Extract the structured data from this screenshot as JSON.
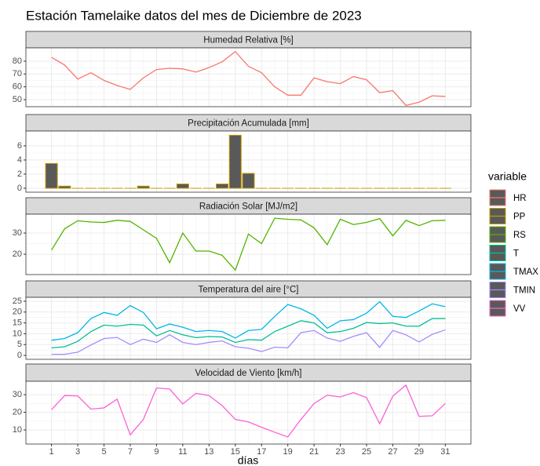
{
  "title": "Estación Tamelaike datos del mes de Diciembre de 2023",
  "x_label": "días",
  "legend_title": "variable",
  "chart_data": [
    {
      "type": "line",
      "title": "Humedad Relativa [%]",
      "x": [
        1,
        2,
        3,
        4,
        5,
        6,
        7,
        8,
        9,
        10,
        11,
        12,
        13,
        14,
        15,
        16,
        17,
        18,
        19,
        20,
        21,
        22,
        23,
        24,
        25,
        26,
        27,
        28,
        29,
        30,
        31
      ],
      "series": [
        {
          "name": "HR",
          "color": "#F8766D",
          "values": [
            83,
            77,
            66,
            71,
            65,
            61,
            58,
            67,
            73.5,
            74.5,
            74,
            71.5,
            75,
            79.5,
            87.5,
            76,
            71,
            60,
            53.5,
            53.5,
            67,
            64,
            62.5,
            68,
            65.5,
            55.5,
            57,
            45.5,
            48,
            53,
            52.5
          ]
        }
      ],
      "xlim": [
        -0.95,
        32.95
      ],
      "xticks": [
        1,
        3,
        5,
        7,
        9,
        11,
        13,
        15,
        17,
        19,
        21,
        23,
        25,
        27,
        29,
        31
      ],
      "ylim": [
        44.5,
        90.4
      ],
      "yticks": [
        50,
        60,
        70,
        80
      ],
      "grid": true
    },
    {
      "type": "bar",
      "title": "Precipitación Acumulada [mm]",
      "x": [
        1,
        2,
        3,
        4,
        5,
        6,
        7,
        8,
        9,
        10,
        11,
        12,
        13,
        14,
        15,
        16,
        17,
        18,
        19,
        20,
        21,
        22,
        23,
        24,
        25,
        26,
        27,
        28,
        29,
        30,
        31
      ],
      "series": [
        {
          "name": "PP",
          "color": "#C49A00",
          "values": [
            3.5,
            0.3,
            0,
            0,
            0,
            0,
            0,
            0.3,
            0,
            0,
            0.6,
            0,
            0,
            0.6,
            7.5,
            2.1,
            0,
            0,
            0,
            0,
            0,
            0,
            0,
            0,
            0,
            0,
            0,
            0,
            0,
            0,
            0
          ]
        }
      ],
      "xlim": [
        -0.95,
        32.95
      ],
      "xticks": [
        1,
        3,
        5,
        7,
        9,
        11,
        13,
        15,
        17,
        19,
        21,
        23,
        25,
        27,
        29,
        31
      ],
      "ylim": [
        -0.56,
        8.1
      ],
      "yticks": [
        0,
        2,
        4,
        6
      ],
      "grid": true
    },
    {
      "type": "line",
      "title": "Radiación Solar [MJ/m2]",
      "x": [
        1,
        2,
        3,
        4,
        5,
        6,
        7,
        8,
        9,
        10,
        11,
        12,
        13,
        14,
        15,
        16,
        17,
        18,
        19,
        20,
        21,
        22,
        23,
        24,
        25,
        26,
        27,
        28,
        29,
        30,
        31
      ],
      "series": [
        {
          "name": "RS",
          "color": "#53B400",
          "values": [
            22,
            32,
            35.8,
            35.2,
            35,
            36,
            35.5,
            31.5,
            27.5,
            16,
            30,
            21.5,
            21.5,
            19.5,
            12.5,
            29.5,
            25,
            37,
            36.5,
            36.2,
            32.5,
            24.5,
            36.5,
            34,
            35,
            36.8,
            28.7,
            36,
            33.5,
            35.8,
            36
          ]
        }
      ],
      "xlim": [
        -0.95,
        32.95
      ],
      "xticks": [
        1,
        3,
        5,
        7,
        9,
        11,
        13,
        15,
        17,
        19,
        21,
        23,
        25,
        27,
        29,
        31
      ],
      "ylim": [
        10.4,
        38.9
      ],
      "yticks": [
        20,
        30
      ],
      "grid": true
    },
    {
      "type": "line",
      "title": "Temperatura del aire [°C]",
      "x": [
        1,
        2,
        3,
        4,
        5,
        6,
        7,
        8,
        9,
        10,
        11,
        12,
        13,
        14,
        15,
        16,
        17,
        18,
        19,
        20,
        21,
        22,
        23,
        24,
        25,
        26,
        27,
        28,
        29,
        30,
        31
      ],
      "series": [
        {
          "name": "T",
          "color": "#00C094",
          "values": [
            3.5,
            4,
            6.5,
            11,
            14,
            13.5,
            14.3,
            14,
            9,
            11.5,
            9.5,
            8.2,
            8.7,
            8.5,
            6,
            7.3,
            7,
            11,
            13.5,
            16,
            15,
            10.5,
            11,
            12.5,
            15.2,
            14.7,
            15,
            13.5,
            13.5,
            17,
            17
          ]
        },
        {
          "name": "TMAX",
          "color": "#00B6EB",
          "values": [
            7,
            7.8,
            10.5,
            17,
            19.8,
            18.5,
            23,
            19.8,
            12.3,
            14.5,
            13,
            11,
            11.5,
            11,
            8,
            11.5,
            12,
            18,
            23.5,
            21.5,
            18.5,
            12.5,
            16,
            16.5,
            19.5,
            24.8,
            18,
            17.5,
            20.5,
            23.8,
            22.5
          ]
        },
        {
          "name": "TMIN",
          "color": "#A58AFF",
          "values": [
            0.5,
            0.5,
            1.5,
            4.8,
            7.8,
            8.3,
            5,
            7.5,
            6,
            9.5,
            6,
            5,
            6,
            6.7,
            4,
            3.3,
            1.8,
            3.8,
            3.5,
            10.5,
            11.5,
            8,
            6.5,
            8.8,
            10.5,
            3.7,
            11.5,
            9.5,
            6.2,
            9.7,
            11.8
          ]
        }
      ],
      "xlim": [
        -0.95,
        32.95
      ],
      "xticks": [
        1,
        3,
        5,
        7,
        9,
        11,
        13,
        15,
        17,
        19,
        21,
        23,
        25,
        27,
        29,
        31
      ],
      "ylim": [
        -1.8,
        26.8
      ],
      "yticks": [
        0,
        5,
        10,
        15,
        20,
        25
      ],
      "grid": true
    },
    {
      "type": "line",
      "title": "Velocidad de Viento [km/h]",
      "x": [
        1,
        2,
        3,
        4,
        5,
        6,
        7,
        8,
        9,
        10,
        11,
        12,
        13,
        14,
        15,
        16,
        17,
        18,
        19,
        20,
        21,
        22,
        23,
        24,
        25,
        26,
        27,
        28,
        29,
        30,
        31
      ],
      "series": [
        {
          "name": "VV",
          "color": "#FB61D7",
          "values": [
            21.5,
            29.5,
            29.3,
            21.8,
            22.5,
            27.5,
            7.2,
            16,
            33.8,
            33.2,
            24.7,
            30.8,
            29.5,
            23.8,
            16,
            14.5,
            11.5,
            8.7,
            6,
            16,
            25,
            29.7,
            28.7,
            31.2,
            28.3,
            13.5,
            29.2,
            35.4,
            17.7,
            18,
            25
          ]
        }
      ],
      "xlim": [
        -0.95,
        32.95
      ],
      "xticks": [
        1,
        3,
        5,
        7,
        9,
        11,
        13,
        15,
        17,
        19,
        21,
        23,
        25,
        27,
        29,
        31
      ],
      "ylim": [
        2,
        37.6
      ],
      "yticks": [
        10,
        20,
        30
      ],
      "grid": true
    }
  ]
}
